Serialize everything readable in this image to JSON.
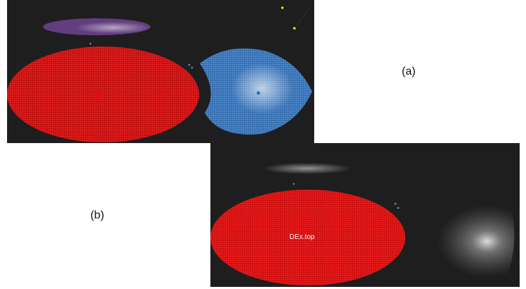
{
  "captions": {
    "panel_a": "(a)",
    "panel_b": "(b)"
  },
  "panel_b": {
    "node_label": "DEx.top"
  },
  "colors": {
    "background": "#1e1e1e",
    "red_cluster": "#ff1a1a",
    "blue_cluster": "#4a90d9",
    "purple_cluster": "#b07ad8",
    "white_cluster": "#e6e6e6",
    "yellow_dot": "#ffff00"
  }
}
